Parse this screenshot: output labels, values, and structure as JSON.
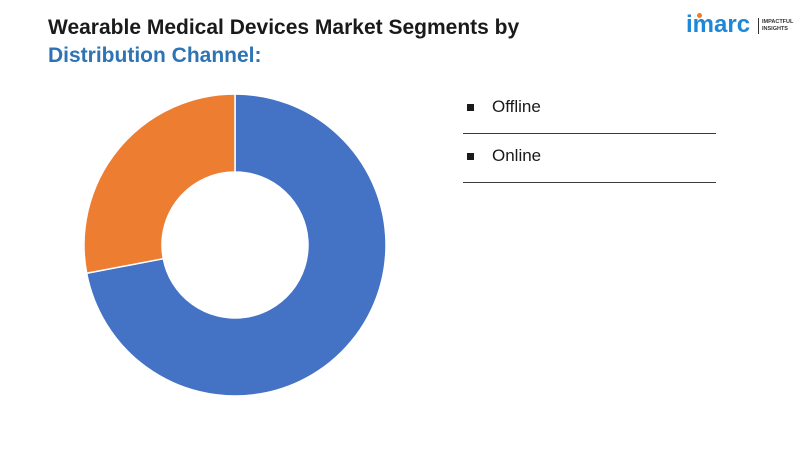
{
  "header": {
    "title_line1": "Wearable Medical Devices Market Segments by",
    "title_line2": "Distribution Channel:"
  },
  "logo": {
    "word": "imarc",
    "tagline_line1": "IMPACTFUL",
    "tagline_line2": "INSIGHTS",
    "brand_color": "#1e88d8",
    "dot_color": "#f47b20"
  },
  "chart_data": {
    "type": "pie",
    "donut": true,
    "categories": [
      "Offline",
      "Online"
    ],
    "values": [
      72,
      28
    ],
    "colors": [
      "#4472c4",
      "#ed7d31"
    ],
    "legend_position": "right"
  }
}
